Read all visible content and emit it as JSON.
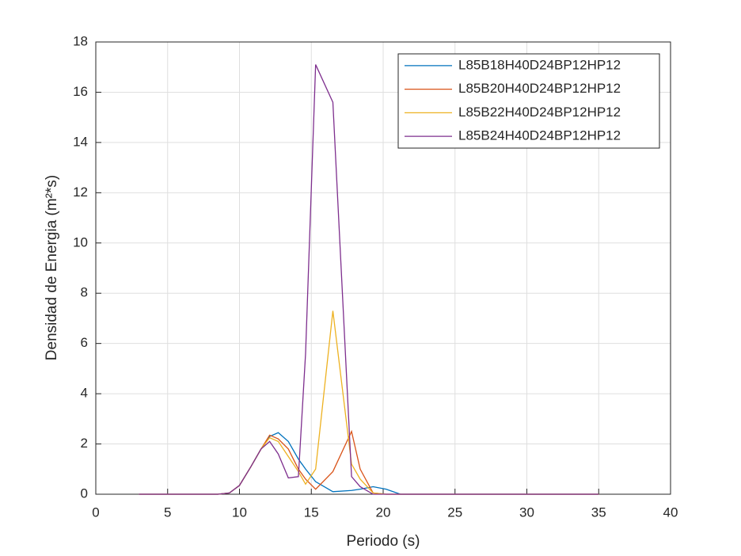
{
  "chart_data": {
    "type": "line",
    "xlabel": "Periodo (s)",
    "ylabel": "Densidad de Energia (m²*s)",
    "x": [
      3,
      5,
      7,
      8.5,
      9.3,
      10,
      10.8,
      11.5,
      12.1,
      12.7,
      13.4,
      14.1,
      14.6,
      15.3,
      16.5,
      17.8,
      18.4,
      19.3,
      20.2,
      21.2,
      23,
      26,
      30,
      35
    ],
    "series": [
      {
        "name": "L85B18H40D24BP12HP12",
        "color": "#0072BD",
        "values": [
          0,
          0,
          0,
          0,
          0.05,
          0.35,
          1.1,
          1.8,
          2.3,
          2.45,
          2.1,
          1.4,
          1.0,
          0.5,
          0.1,
          0.15,
          0.2,
          0.3,
          0.2,
          0,
          0,
          0,
          0,
          0
        ]
      },
      {
        "name": "L85B20H40D24BP12HP12",
        "color": "#D95319",
        "values": [
          0,
          0,
          0,
          0,
          0.05,
          0.35,
          1.1,
          1.8,
          2.35,
          2.2,
          1.8,
          1.0,
          0.6,
          0.2,
          0.9,
          2.5,
          1.0,
          0.05,
          0,
          0,
          0,
          0,
          0,
          0
        ]
      },
      {
        "name": "L85B22H40D24BP12HP12",
        "color": "#EDB120",
        "values": [
          0,
          0,
          0,
          0,
          0.05,
          0.35,
          1.1,
          1.8,
          2.25,
          2.1,
          1.5,
          0.9,
          0.4,
          1.0,
          7.3,
          1.2,
          0.6,
          0.05,
          0,
          0,
          0,
          0,
          0,
          0
        ]
      },
      {
        "name": "L85B24H40D24BP12HP12",
        "color": "#7E2F8E",
        "values": [
          0,
          0,
          0,
          0,
          0.05,
          0.35,
          1.1,
          1.8,
          2.1,
          1.6,
          0.65,
          0.7,
          5.6,
          17.1,
          15.6,
          0.7,
          0.3,
          0,
          0,
          0,
          0,
          0,
          0,
          0
        ]
      }
    ],
    "xlim": [
      0,
      40
    ],
    "xticks": [
      0,
      5,
      10,
      15,
      20,
      25,
      30,
      35,
      40
    ],
    "ylim": [
      0,
      18
    ],
    "yticks": [
      0,
      2,
      4,
      6,
      8,
      10,
      12,
      14,
      16,
      18
    ],
    "grid": true,
    "legend": "upper-right"
  }
}
